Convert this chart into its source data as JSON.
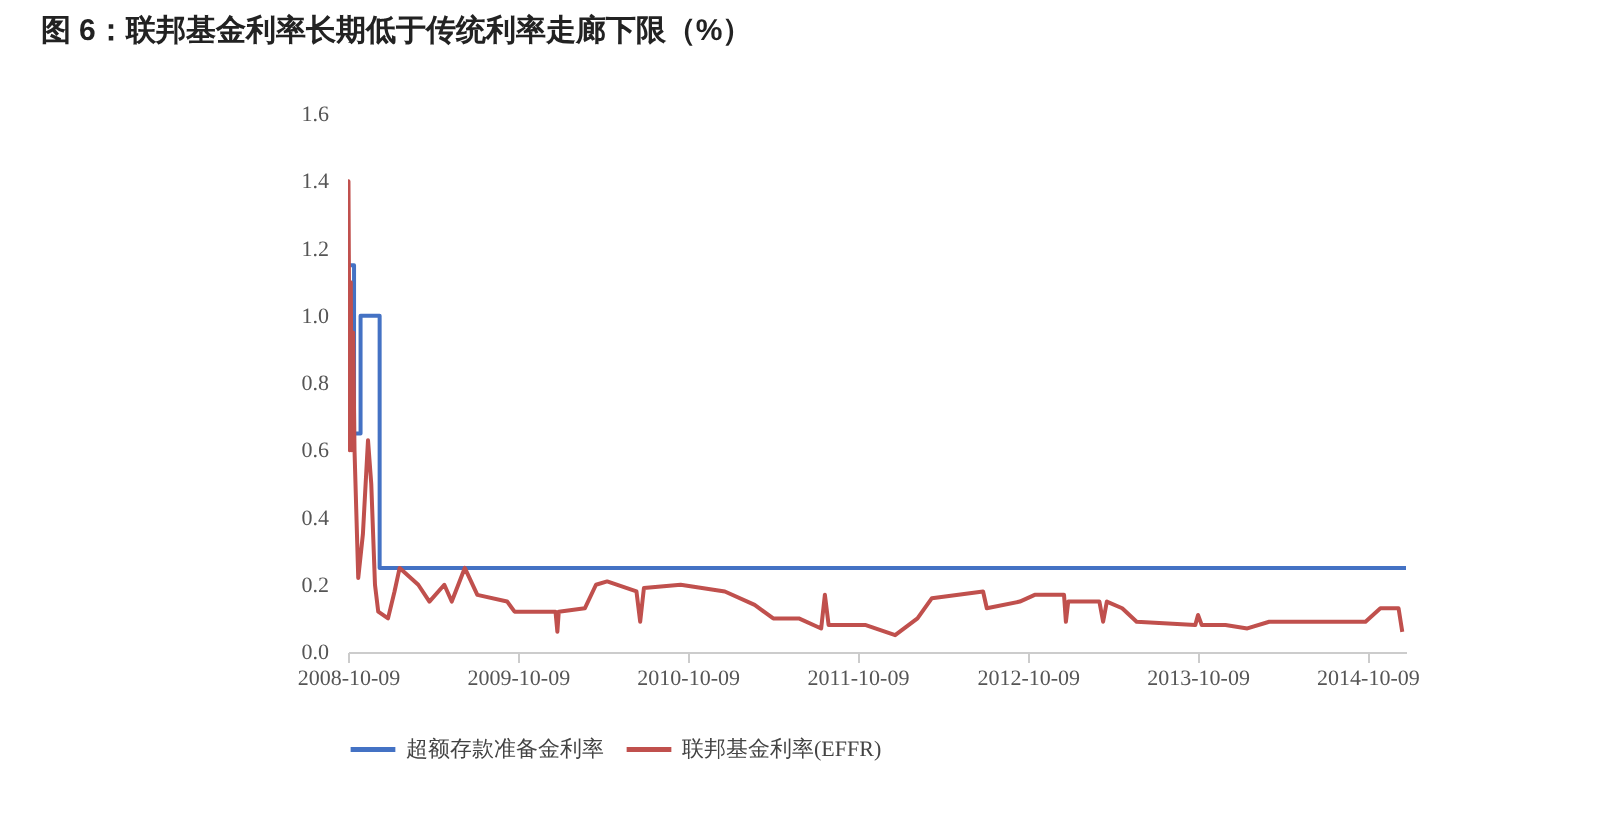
{
  "chart_data": {
    "type": "line",
    "title": "图 6：联邦基金利率长期低于传统利率走廊下限（%）",
    "xlim": [
      "2008-10-09",
      "2014-12-31"
    ],
    "xticks": [
      "2008-10-09",
      "2009-10-09",
      "2010-10-09",
      "2011-10-09",
      "2012-10-09",
      "2013-10-09",
      "2014-10-09"
    ],
    "ylim": [
      0,
      1.6
    ],
    "yticks": [
      {
        "value": 0,
        "label": "0.0"
      },
      {
        "value": 0.2,
        "label": "0.2"
      },
      {
        "value": 0.4,
        "label": "0.4"
      },
      {
        "value": 0.6,
        "label": "0.6"
      },
      {
        "value": 0.8,
        "label": "0.8"
      },
      {
        "value": 1,
        "label": "1.0"
      },
      {
        "value": 1.2,
        "label": "1.2"
      },
      {
        "value": 1.4,
        "label": "1.4"
      },
      {
        "value": 1.6,
        "label": "1.6"
      }
    ],
    "grid": false,
    "legend": "bottom",
    "series": [
      {
        "name": "超额存款准备金利率",
        "type": "step",
        "color": "#4472c4",
        "x": [
          "2008-10-12",
          "2008-10-22",
          "2008-11-05",
          "2008-12-16",
          "2014-12-31"
        ],
        "values": [
          1.15,
          0.65,
          1.0,
          0.25,
          0.25
        ]
      },
      {
        "name": "联邦基金利率(EFFR)",
        "type": "line",
        "color": "#c0504d",
        "x": [
          "2008-10-09",
          "2008-10-10",
          "2008-10-13",
          "2008-10-15",
          "2008-10-17",
          "2008-10-20",
          "2008-10-23",
          "2008-10-31",
          "2008-11-10",
          "2008-11-21",
          "2008-11-28",
          "2008-12-06",
          "2008-12-13",
          "2009-01-03",
          "2009-01-17",
          "2009-01-28",
          "2009-03-09",
          "2009-04-02",
          "2009-05-04",
          "2009-05-20",
          "2009-06-17",
          "2009-07-14",
          "2009-09-16",
          "2009-10-02",
          "2009-12-29",
          "2010-01-02",
          "2010-01-05",
          "2010-03-02",
          "2010-03-26",
          "2010-04-19",
          "2010-06-21",
          "2010-06-29",
          "2010-07-07",
          "2010-09-24",
          "2010-12-28",
          "2011-03-02",
          "2011-04-11",
          "2011-06-05",
          "2011-07-23",
          "2011-07-31",
          "2011-08-08",
          "2011-10-27",
          "2011-12-29",
          "2012-02-15",
          "2012-03-17",
          "2012-07-05",
          "2012-07-13",
          "2012-09-22",
          "2012-10-24",
          "2012-12-26",
          "2012-12-30",
          "2013-01-04",
          "2013-03-12",
          "2013-03-20",
          "2013-03-28",
          "2013-04-30",
          "2013-05-31",
          "2013-10-04",
          "2013-10-10",
          "2013-10-18",
          "2013-12-08",
          "2014-01-24",
          "2014-03-12",
          "2014-06-16",
          "2014-10-05",
          "2014-11-06",
          "2014-12-15",
          "2014-12-23"
        ],
        "values": [
          0.78,
          1.4,
          0.6,
          1.1,
          0.6,
          0.95,
          0.6,
          0.22,
          0.35,
          0.63,
          0.5,
          0.2,
          0.12,
          0.1,
          0.18,
          0.25,
          0.2,
          0.15,
          0.2,
          0.15,
          0.25,
          0.17,
          0.15,
          0.12,
          0.12,
          0.06,
          0.12,
          0.13,
          0.2,
          0.21,
          0.18,
          0.09,
          0.19,
          0.2,
          0.18,
          0.14,
          0.1,
          0.1,
          0.07,
          0.17,
          0.08,
          0.08,
          0.05,
          0.1,
          0.16,
          0.18,
          0.13,
          0.15,
          0.17,
          0.17,
          0.09,
          0.15,
          0.15,
          0.09,
          0.15,
          0.13,
          0.09,
          0.08,
          0.11,
          0.08,
          0.08,
          0.07,
          0.09,
          0.09,
          0.09,
          0.13,
          0.13,
          0.06
        ]
      }
    ]
  }
}
